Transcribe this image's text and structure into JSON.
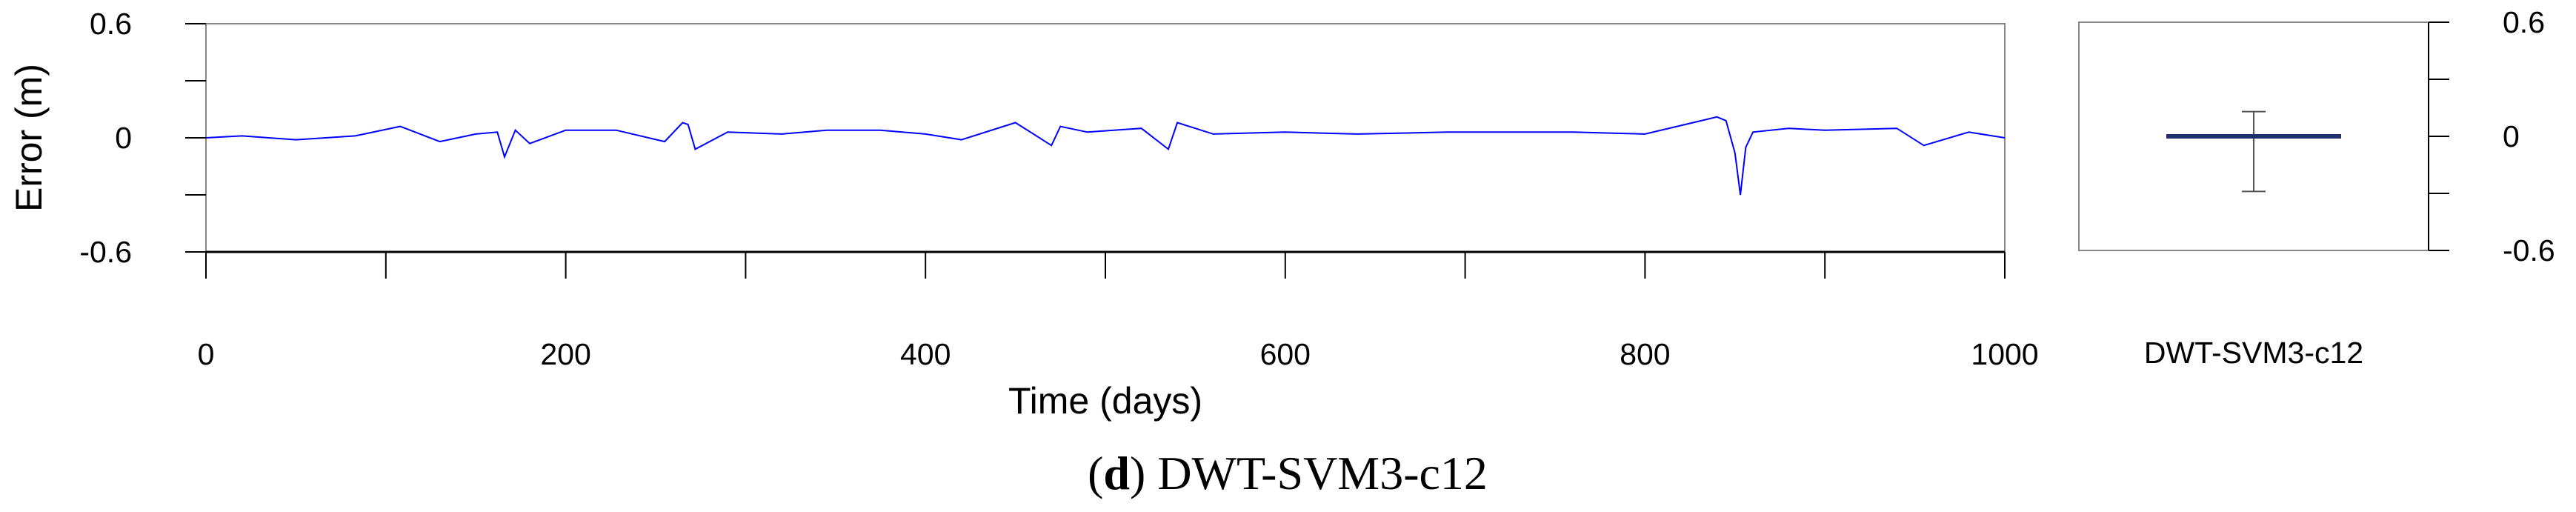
{
  "caption": {
    "open": "(",
    "letter": "d",
    "close": ")",
    "text": " DWT-SVM3-c12"
  },
  "chart_data": [
    {
      "type": "line",
      "xlabel": "Time (days)",
      "ylabel": "Error (m)",
      "xlim": [
        0,
        1000
      ],
      "ylim": [
        -0.6,
        0.6
      ],
      "x_ticks": [
        0,
        200,
        400,
        600,
        800,
        1000
      ],
      "x_tick_labels": [
        "0",
        "200",
        "400",
        "600",
        "800",
        "1000"
      ],
      "y_ticks": [
        0.6,
        0,
        -0.6
      ],
      "y_tick_labels": [
        "0.6",
        "0",
        "-0.6"
      ],
      "line_color": "#0000ff",
      "series": [
        {
          "x": [
            0,
            20,
            50,
            83,
            108,
            130,
            150,
            162,
            166,
            172,
            180,
            200,
            228,
            255,
            265,
            268,
            272,
            290,
            320,
            345,
            375,
            400,
            420,
            450,
            470,
            475,
            490,
            520,
            535,
            540,
            560,
            600,
            640,
            690,
            720,
            760,
            800,
            840,
            845,
            850,
            853,
            856,
            860,
            880,
            900,
            940,
            955,
            980,
            1000
          ],
          "y": [
            0,
            0.01,
            -0.01,
            0.01,
            0.06,
            -0.02,
            0.02,
            0.03,
            -0.1,
            0.04,
            -0.03,
            0.04,
            0.04,
            -0.02,
            0.08,
            0.07,
            -0.06,
            0.03,
            0.02,
            0.04,
            0.04,
            0.02,
            -0.01,
            0.08,
            -0.04,
            0.06,
            0.03,
            0.05,
            -0.06,
            0.08,
            0.02,
            0.03,
            0.02,
            0.03,
            0.03,
            0.03,
            0.02,
            0.11,
            0.09,
            -0.08,
            -0.3,
            -0.05,
            0.03,
            0.05,
            0.04,
            0.05,
            -0.04,
            0.03,
            0
          ]
        }
      ]
    },
    {
      "type": "box",
      "category": "DWT-SVM3-c12",
      "ylim": [
        -0.6,
        0.6
      ],
      "y_ticks": [
        0.6,
        0,
        -0.6
      ],
      "y_tick_labels": [
        "0.6",
        "0",
        "-0.6"
      ],
      "whisker_high": 0.13,
      "whisker_low": -0.29,
      "median": 0,
      "box_color": "#1f2f6b"
    }
  ]
}
